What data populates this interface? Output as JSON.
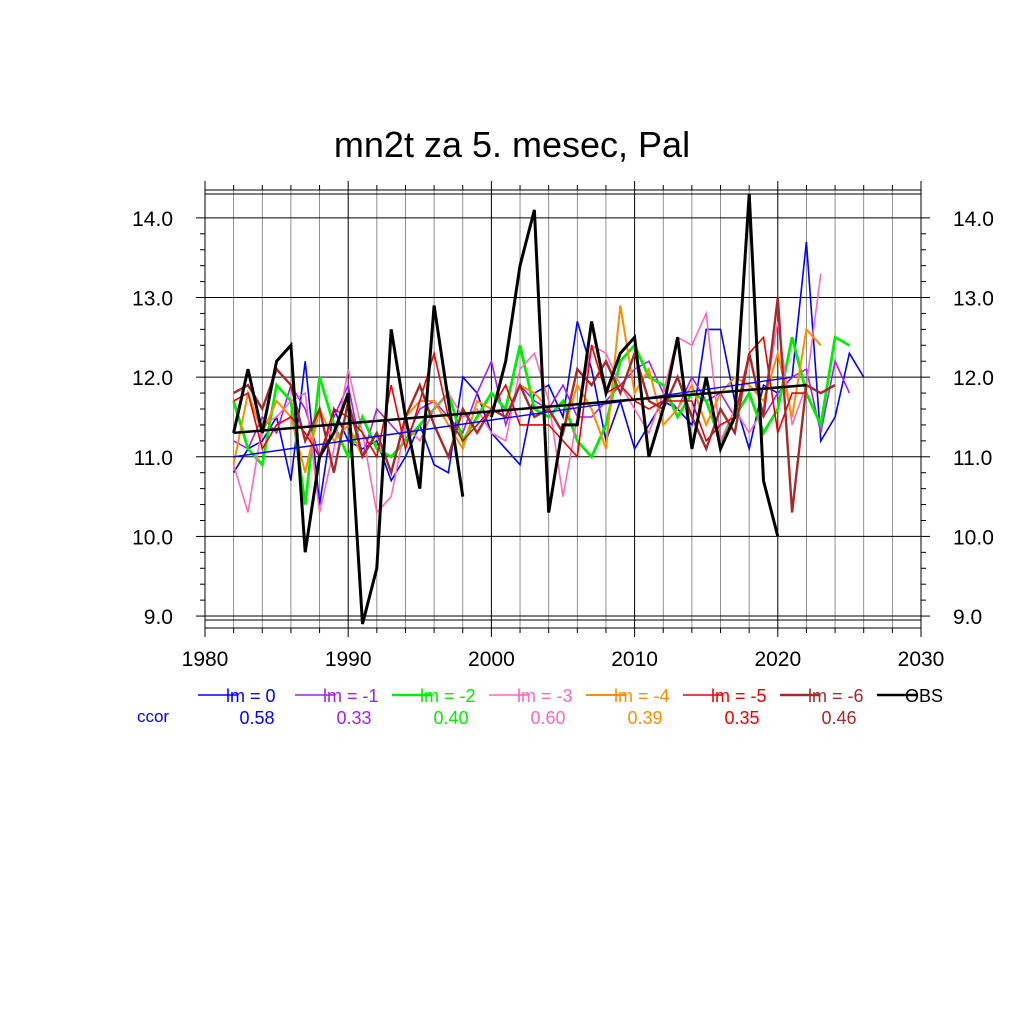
{
  "chart_data": {
    "type": "line",
    "title": "mn2t za 5. mesec, Pal",
    "xlim": [
      1980,
      2030
    ],
    "ylim": [
      8.85,
      14.35
    ],
    "x_ticks": [
      "1980",
      "1990",
      "2000",
      "2010",
      "2020",
      "2030"
    ],
    "y_ticks": [
      "9.0",
      "10.0",
      "11.0",
      "12.0",
      "13.0",
      "14.0"
    ],
    "y_tick_values": [
      9,
      10,
      11,
      12,
      13,
      14
    ],
    "x_tick_values": [
      1980,
      1990,
      2000,
      2010,
      2020,
      2030
    ],
    "grid": true,
    "legend_position": "bottom",
    "ccor_label": "ccor",
    "series": [
      {
        "name": "lm = 0",
        "ccor": "0.58",
        "color": "#0000ff",
        "width": 1.6,
        "x_start": 1982,
        "values": [
          10.8,
          11.1,
          11.2,
          11.5,
          10.7,
          12.2,
          10.4,
          11.6,
          11.2,
          11.1,
          11.2,
          10.7,
          11.0,
          11.4,
          10.9,
          10.8,
          12.0,
          11.8,
          11.3,
          11.1,
          10.9,
          11.8,
          11.9,
          11.5,
          12.7,
          12.1,
          11.2,
          11.7,
          11.1,
          11.4,
          11.7,
          11.6,
          11.4,
          12.6,
          12.6,
          11.7,
          11.1,
          11.9,
          11.8,
          12.0,
          13.7,
          11.2,
          11.5,
          12.3,
          12.0
        ],
        "trend": [
          11.0,
          12.0
        ]
      },
      {
        "name": "lm = -1",
        "ccor": "0.33",
        "color": "#a020f0",
        "width": 1.6,
        "x_start": 1982,
        "values": [
          11.2,
          11.1,
          11.5,
          11.3,
          11.9,
          11.6,
          11.0,
          11.5,
          11.9,
          11.0,
          11.6,
          11.4,
          11.2,
          11.6,
          11.7,
          11.5,
          11.3,
          11.8,
          12.2,
          11.4,
          11.9,
          11.7,
          11.6,
          11.9,
          11.5,
          11.5,
          11.7,
          11.9,
          12.1,
          12.2,
          11.8,
          11.6,
          12.0,
          11.7,
          11.8,
          11.5,
          12.3,
          11.5,
          11.8,
          12.0,
          12.1,
          11.3,
          12.2,
          11.8
        ]
      },
      {
        "name": "lm = -2",
        "ccor": "0.40",
        "color": "#00ee00",
        "width": 2.8,
        "x_start": 1982,
        "values": [
          11.7,
          11.1,
          10.9,
          11.9,
          11.7,
          10.4,
          12.0,
          11.4,
          11.0,
          11.5,
          11.1,
          11.0,
          11.2,
          11.4,
          11.6,
          11.8,
          11.2,
          11.5,
          11.8,
          11.6,
          12.4,
          11.6,
          11.5,
          11.7,
          11.2,
          11.0,
          11.4,
          12.2,
          12.4,
          12.0,
          11.9,
          11.5,
          11.8,
          11.7,
          11.2,
          11.5,
          11.8,
          11.3,
          11.6,
          12.5,
          11.8,
          11.4,
          12.5,
          12.4
        ]
      },
      {
        "name": "lm = -3",
        "ccor": "0.60",
        "color": "#ff69b4",
        "width": 1.6,
        "x_start": 1982,
        "values": [
          10.9,
          10.3,
          11.4,
          11.5,
          11.7,
          11.8,
          10.3,
          11.1,
          12.1,
          11.3,
          10.3,
          10.5,
          11.4,
          11.2,
          11.6,
          11.8,
          11.5,
          11.6,
          11.3,
          11.2,
          12.1,
          12.3,
          11.7,
          10.5,
          11.5,
          12.4,
          12.3,
          11.9,
          11.6,
          11.3,
          11.8,
          12.5,
          12.4,
          12.8,
          11.2,
          11.6,
          11.3,
          11.6,
          12.7,
          11.4,
          11.9,
          13.3
        ]
      },
      {
        "name": "lm = -4",
        "ccor": "0.39",
        "color": "#ff8c00",
        "width": 2.0,
        "x_start": 1982,
        "values": [
          10.9,
          11.8,
          11.3,
          11.7,
          11.5,
          10.8,
          11.6,
          11.2,
          11.4,
          11.0,
          11.3,
          10.8,
          11.5,
          11.7,
          11.7,
          11.4,
          11.1,
          11.7,
          11.6,
          11.5,
          11.9,
          11.8,
          11.6,
          11.3,
          11.9,
          11.6,
          11.1,
          12.9,
          11.8,
          12.1,
          11.4,
          11.6,
          11.9,
          11.4,
          11.8,
          12.0,
          11.9,
          11.7,
          12.3,
          11.5,
          12.6,
          12.4
        ]
      },
      {
        "name": "lm = -5",
        "ccor": "0.35",
        "color": "#ee0000",
        "width": 1.6,
        "x_start": 1982,
        "values": [
          11.7,
          11.8,
          11.1,
          11.4,
          11.5,
          11.3,
          11.0,
          11.6,
          11.5,
          11.3,
          11.0,
          11.9,
          11.1,
          11.7,
          12.3,
          11.5,
          11.2,
          11.4,
          11.6,
          11.9,
          11.4,
          11.4,
          11.4,
          11.2,
          11.0,
          12.4,
          11.8,
          11.9,
          11.7,
          11.6,
          11.7,
          11.7,
          11.7,
          11.2,
          11.4,
          11.5,
          12.3,
          12.5,
          11.3,
          11.8,
          11.8
        ]
      },
      {
        "name": "lm = -6",
        "ccor": "0.46",
        "color": "#a52a2a",
        "width": 2.4,
        "x_start": 1982,
        "values": [
          11.8,
          11.9,
          11.6,
          12.1,
          11.9,
          11.2,
          11.6,
          10.8,
          11.7,
          11.0,
          11.3,
          10.8,
          11.5,
          11.9,
          11.4,
          11.0,
          11.6,
          11.3,
          11.6,
          11.5,
          11.9,
          11.5,
          11.6,
          11.3,
          12.1,
          11.9,
          12.2,
          11.8,
          12.3,
          11.7,
          11.6,
          12.0,
          11.5,
          11.1,
          11.6,
          11.3,
          12.3,
          11.5,
          13.0,
          10.3,
          11.9,
          11.8,
          11.9
        ]
      },
      {
        "name": "OBS",
        "ccor": "",
        "color": "#000000",
        "width": 3.0,
        "x_start": 1982,
        "values": [
          11.3,
          12.1,
          11.3,
          12.2,
          12.4,
          9.8,
          11.0,
          11.3,
          11.8,
          8.9,
          9.6,
          12.6,
          11.5,
          10.6,
          12.9,
          11.7,
          10.5,
          null,
          11.5,
          12.2,
          13.4,
          14.1,
          10.3,
          11.4,
          11.4,
          12.7,
          11.8,
          12.3,
          12.5,
          11.0,
          11.6,
          12.5,
          11.1,
          12.0,
          11.1,
          11.5,
          14.3,
          10.7,
          10.0
        ],
        "trend": [
          11.3,
          11.9
        ]
      }
    ]
  }
}
